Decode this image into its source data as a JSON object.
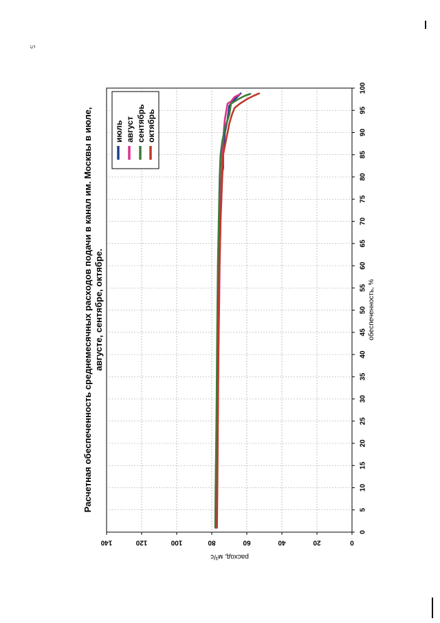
{
  "page": {
    "number": "5"
  },
  "chart_data": {
    "type": "line",
    "title": "Расчетная обеспеченность среднемесячных расходов подачи в канал им. Москвы в июле,",
    "subtitle": "августе, сентябре, октябре.",
    "xlabel": "обеспеченность, %",
    "ylabel": "расход, м³/с",
    "xlim": [
      0,
      100
    ],
    "ylim": [
      0,
      140
    ],
    "xticks": [
      "0",
      "5",
      "10",
      "15",
      "20",
      "25",
      "30",
      "35",
      "40",
      "45",
      "50",
      "55",
      "60",
      "65",
      "70",
      "75",
      "80",
      "85",
      "90",
      "95",
      "100"
    ],
    "yticks": [
      "0",
      "20",
      "40",
      "60",
      "80",
      "100",
      "120",
      "140"
    ],
    "grid": true,
    "legend_position": "top-right",
    "series": [
      {
        "name": "июль",
        "color": "#1f3f8f",
        "points": [
          [
            1,
            77.5
          ],
          [
            10,
            77.2
          ],
          [
            20,
            77
          ],
          [
            30,
            76.8
          ],
          [
            40,
            76.5
          ],
          [
            50,
            76.2
          ],
          [
            60,
            76
          ],
          [
            70,
            75.5
          ],
          [
            75,
            75
          ],
          [
            80,
            74.5
          ],
          [
            82,
            73.5
          ],
          [
            85,
            73.5
          ],
          [
            90,
            72.5
          ],
          [
            93,
            71
          ],
          [
            96,
            70
          ],
          [
            97,
            68
          ],
          [
            98,
            65.5
          ],
          [
            98.8,
            63.5
          ]
        ]
      },
      {
        "name": "август",
        "color": "#d8338e",
        "points": [
          [
            1,
            77.2
          ],
          [
            10,
            77
          ],
          [
            20,
            76.8
          ],
          [
            30,
            76.5
          ],
          [
            40,
            76.2
          ],
          [
            50,
            75.8
          ],
          [
            60,
            75.5
          ],
          [
            70,
            75
          ],
          [
            80,
            74.5
          ],
          [
            85,
            74
          ],
          [
            88,
            73.5
          ],
          [
            91,
            73
          ],
          [
            93,
            72.5
          ],
          [
            96.5,
            71
          ],
          [
            97,
            69
          ],
          [
            98,
            67
          ],
          [
            98.6,
            64
          ]
        ]
      },
      {
        "name": "сентябрь",
        "color": "#3d7a3a",
        "points": [
          [
            1,
            78
          ],
          [
            10,
            77.8
          ],
          [
            20,
            77.5
          ],
          [
            30,
            77.2
          ],
          [
            40,
            77
          ],
          [
            50,
            76.8
          ],
          [
            60,
            76.5
          ],
          [
            70,
            76
          ],
          [
            80,
            75.5
          ],
          [
            85,
            75
          ],
          [
            88,
            74
          ],
          [
            91,
            72.5
          ],
          [
            94,
            70
          ],
          [
            96.5,
            69
          ],
          [
            97.5,
            65
          ],
          [
            98.3,
            61
          ],
          [
            98.7,
            58
          ]
        ]
      },
      {
        "name": "октябрь",
        "color": "#c0392b",
        "points": [
          [
            1,
            77
          ],
          [
            10,
            76.8
          ],
          [
            20,
            76.6
          ],
          [
            30,
            76.4
          ],
          [
            40,
            76.2
          ],
          [
            50,
            76
          ],
          [
            60,
            75.6
          ],
          [
            70,
            75
          ],
          [
            80,
            74
          ],
          [
            85,
            73.5
          ],
          [
            88,
            72
          ],
          [
            90,
            71
          ],
          [
            92,
            70
          ],
          [
            94,
            68.5
          ],
          [
            95.5,
            67
          ],
          [
            96.5,
            64
          ],
          [
            97.5,
            60
          ],
          [
            98.3,
            56
          ],
          [
            98.8,
            53
          ]
        ]
      }
    ]
  }
}
